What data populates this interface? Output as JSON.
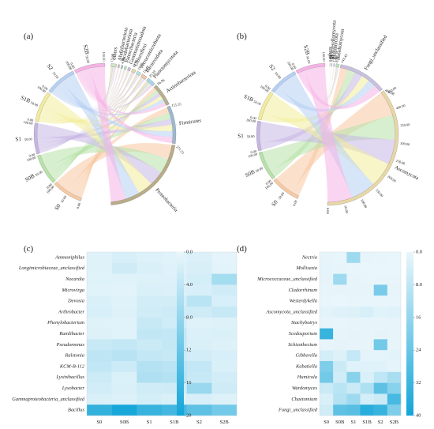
{
  "panels": {
    "a": "(a)",
    "b": "(b)",
    "c": "(c)",
    "d": "(d)"
  },
  "chart_data": [
    {
      "type": "chord",
      "panel": "(a)",
      "samples": [
        {
          "name": "S0",
          "total": 100,
          "color": "#f7c9a3"
        },
        {
          "name": "S0B",
          "total": 100,
          "color": "#b7e2a8"
        },
        {
          "name": "S1",
          "total": 100,
          "color": "#c6b6e3"
        },
        {
          "name": "S1B",
          "total": 100,
          "color": "#f3ec9b"
        },
        {
          "name": "S2",
          "total": 100,
          "color": "#b6d0f4"
        },
        {
          "name": "S2B",
          "total": 100,
          "color": "#f6b3e6"
        }
      ],
      "taxa": [
        {
          "name": "others",
          "value": 15.66,
          "value_label": "15.66"
        },
        {
          "name": "Abditibacteriota",
          "value": 4.5,
          "value_label": ""
        },
        {
          "name": "Acidobacteriota",
          "value": 4.93,
          "value_label": "4.93"
        },
        {
          "name": "Patescibacteria",
          "value": 6.0,
          "value_label": ""
        },
        {
          "name": "Gemmatimonadota",
          "value": 7.5,
          "value_label": ""
        },
        {
          "name": "Chloroflexi",
          "value": 10.82,
          "value_label": "10.82"
        },
        {
          "name": "Verrucomicrobiota",
          "value": 11.56,
          "value_label": "11.56"
        },
        {
          "name": "Bacteroidota",
          "value": 15.49,
          "value_label": "15.49"
        },
        {
          "name": "Planctomycetota",
          "value": 25.33,
          "value_label": "25.33"
        },
        {
          "name": "Actinobacteriota",
          "value": 66.96,
          "value_label": "66.96"
        },
        {
          "name": "Firmicutes",
          "value": 111.55,
          "value_label": "111.55"
        },
        {
          "name": "Proteobacteria",
          "value": 271.23,
          "value_label": "271.23"
        }
      ],
      "sample_ticks": [
        "0.00",
        "50.00",
        "100.00"
      ]
    },
    {
      "type": "chord",
      "panel": "(b)",
      "samples": [
        {
          "name": "S0",
          "total": 100,
          "color": "#f7c9a3"
        },
        {
          "name": "S0B",
          "total": 100,
          "color": "#b7e2a8"
        },
        {
          "name": "S1",
          "total": 100,
          "color": "#c6b6e3"
        },
        {
          "name": "S1B",
          "total": 100,
          "color": "#f3ec9b"
        },
        {
          "name": "S2",
          "total": 100,
          "color": "#b6d0f4"
        },
        {
          "name": "S2B",
          "total": 100,
          "color": "#f6b3e6"
        }
      ],
      "taxa": [
        {
          "name": "others",
          "value": 0.14,
          "value_label": "0.14"
        },
        {
          "name": "Mortierellomycota",
          "value": 1.0,
          "value_label": "1.00"
        },
        {
          "name": "Zygomycota",
          "value": 1.85,
          "value_label": "1.85"
        },
        {
          "name": "Basidiomycota",
          "value": 8.72,
          "value_label": "8.72"
        },
        {
          "name": "Fungi_unclassified",
          "value": 143.43,
          "value_label": "143.43"
        },
        {
          "name": "Ascomycota",
          "value": 460.98,
          "value_label": "460.98"
        }
      ],
      "sample_ticks": [
        "0.00",
        "50.00",
        "100.00"
      ],
      "taxa_ticks": [
        "0.00",
        "50.00",
        "100.00",
        "150.00",
        "200.00",
        "250.00",
        "300.00",
        "350.00",
        "400.00",
        "450.00"
      ]
    },
    {
      "type": "heatmap",
      "panel": "(c)",
      "columns": [
        "S0",
        "S0B",
        "S1",
        "S1B",
        "S2",
        "S2B"
      ],
      "rows": [
        "Ammoniphilus",
        "Longimicrobiaceae_unclassified",
        "Nocardia",
        "Microvirga",
        "Devosia",
        "Arthrobacter",
        "Phenylobacterium",
        "Ramlibacter",
        "Pseudomonas",
        "Ralstonia",
        "KCM-B-112",
        "Lysinibacillus",
        "Lysobacter",
        "Gammaproteobacteria_unclassified",
        "Bacillus"
      ],
      "values": [
        [
          1.0,
          1.8,
          1.2,
          0.8,
          1.4,
          0.6
        ],
        [
          0.9,
          2.6,
          1.6,
          1.0,
          1.7,
          0.7
        ],
        [
          1.1,
          0.9,
          1.2,
          1.3,
          2.0,
          6.5
        ],
        [
          0.8,
          0.7,
          1.6,
          1.4,
          1.8,
          2.4
        ],
        [
          1.5,
          1.0,
          2.2,
          2.1,
          4.5,
          1.8
        ],
        [
          1.8,
          1.2,
          2.4,
          2.8,
          2.6,
          3.2
        ],
        [
          1.0,
          0.8,
          3.2,
          2.5,
          1.0,
          1.2
        ],
        [
          1.2,
          0.8,
          3.8,
          3.6,
          1.4,
          1.6
        ],
        [
          3.2,
          3.6,
          3.0,
          3.4,
          1.6,
          1.2
        ],
        [
          4.2,
          4.6,
          3.6,
          3.2,
          2.2,
          1.8
        ],
        [
          3.8,
          2.8,
          5.0,
          4.4,
          3.6,
          1.6
        ],
        [
          2.8,
          1.6,
          5.5,
          5.0,
          3.2,
          2.2
        ],
        [
          2.2,
          1.6,
          2.4,
          2.6,
          7.5,
          2.6
        ],
        [
          1.6,
          1.2,
          2.0,
          1.6,
          1.8,
          1.2
        ],
        [
          17.0,
          19.5,
          16.5,
          15.5,
          13.0,
          11.0
        ]
      ],
      "colorbar": {
        "min": 0,
        "max": 20,
        "ticks": [
          "0.0",
          "4.0",
          "8.0",
          "12",
          "16",
          "20"
        ]
      }
    },
    {
      "type": "heatmap",
      "panel": "(d)",
      "columns": [
        "S0",
        "S0B",
        "S1",
        "S1B",
        "S2",
        "S2B"
      ],
      "rows": [
        "Nectria",
        "Mollisezia",
        "Micrococcaceae_unclassified",
        "Cladorrhinum",
        "Westerdykella",
        "Ascomycota_unclassified",
        "Stachybotrys",
        "Scedosporium",
        "Schizothecium",
        "Gibberella",
        "Kabatiella",
        "Humicola",
        "Wardomyces",
        "Chaetomium",
        "Fungi_unclassified"
      ],
      "values": [
        [
          0.5,
          0.3,
          14.0,
          0.6,
          0.3,
          0.2
        ],
        [
          1.2,
          0.5,
          0.3,
          0.2,
          0.2,
          0.2
        ],
        [
          0.8,
          14.0,
          0.5,
          0.3,
          0.4,
          0.3
        ],
        [
          0.6,
          0.5,
          0.6,
          0.5,
          21.0,
          0.6
        ],
        [
          0.4,
          0.2,
          0.4,
          0.3,
          0.4,
          0.4
        ],
        [
          1.5,
          2.0,
          2.4,
          3.6,
          1.6,
          1.8
        ],
        [
          0.6,
          0.4,
          0.5,
          0.5,
          0.6,
          0.6
        ],
        [
          33.0,
          0.6,
          0.8,
          0.6,
          0.8,
          0.6
        ],
        [
          0.5,
          0.8,
          0.6,
          0.5,
          22.0,
          0.6
        ],
        [
          4.0,
          2.5,
          7.0,
          1.2,
          1.0,
          1.4
        ],
        [
          20.0,
          6.0,
          1.8,
          2.0,
          2.0,
          1.0
        ],
        [
          22.0,
          5.0,
          18.0,
          3.0,
          8.0,
          12.0
        ],
        [
          6.0,
          9.0,
          6.0,
          11.0,
          26.0,
          18.0
        ],
        [
          3.0,
          10.0,
          14.0,
          4.0,
          6.0,
          30.0
        ],
        [
          5.0,
          26.0,
          27.0,
          36.0,
          33.0,
          20.0
        ]
      ],
      "colorbar": {
        "min": 0,
        "max": 40,
        "ticks": [
          "0.0",
          "8.0",
          "16",
          "24",
          "32",
          "40"
        ]
      }
    }
  ]
}
